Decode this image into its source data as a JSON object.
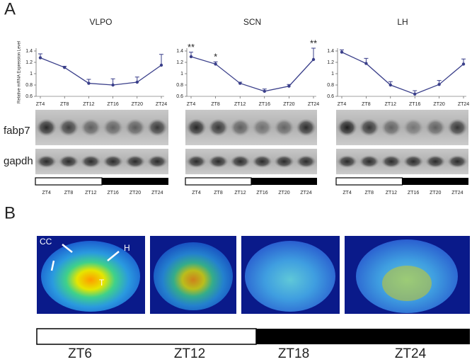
{
  "panel_a": {
    "label": "A",
    "blot_rows": [
      "fabp7",
      "gapdh"
    ]
  },
  "chart_data": [
    {
      "type": "line",
      "title": "VLPO",
      "y_label": "Relative mRNA Expression Level",
      "categories": [
        "ZT4",
        "ZT8",
        "ZT12",
        "ZT16",
        "ZT20",
        "ZT24"
      ],
      "values": [
        1.28,
        1.11,
        0.83,
        0.8,
        0.85,
        1.15
      ],
      "errors": [
        0.07,
        0.02,
        0.07,
        0.11,
        0.09,
        0.19
      ],
      "significance": [
        null,
        null,
        null,
        null,
        null,
        null
      ],
      "color": "#3a3f8a",
      "ylim": [
        0.6,
        1.45
      ],
      "yticks": [
        0.6,
        0.8,
        1,
        1.2,
        1.4
      ]
    },
    {
      "type": "line",
      "title": "SCN",
      "categories": [
        "ZT4",
        "ZT8",
        "ZT12",
        "ZT16",
        "ZT20",
        "ZT24"
      ],
      "values": [
        1.3,
        1.17,
        0.83,
        0.69,
        0.78,
        1.25
      ],
      "errors": [
        0.08,
        0.04,
        0.02,
        0.04,
        0.03,
        0.2
      ],
      "significance": [
        "**",
        "*",
        null,
        null,
        null,
        "**"
      ],
      "color": "#3a3f8a",
      "ylim": [
        0.6,
        1.45
      ],
      "yticks": [
        0.6,
        0.8,
        1,
        1.2,
        1.4
      ]
    },
    {
      "type": "line",
      "title": "LH",
      "categories": [
        "ZT4",
        "ZT8",
        "ZT12",
        "ZT16",
        "ZT20",
        "ZT24"
      ],
      "values": [
        1.38,
        1.18,
        0.8,
        0.64,
        0.81,
        1.17
      ],
      "errors": [
        0.04,
        0.09,
        0.06,
        0.06,
        0.07,
        0.09
      ],
      "significance": [
        null,
        null,
        null,
        null,
        null,
        null
      ],
      "color": "#3a3f8a",
      "ylim": [
        0.6,
        1.45
      ],
      "yticks": [
        0.6,
        0.8,
        1,
        1.2,
        1.4
      ]
    }
  ],
  "panel_b": {
    "label": "B",
    "annotations": [
      "CC",
      "H",
      "T"
    ],
    "times": [
      "ZT6",
      "ZT12",
      "ZT18",
      "ZT24"
    ]
  }
}
